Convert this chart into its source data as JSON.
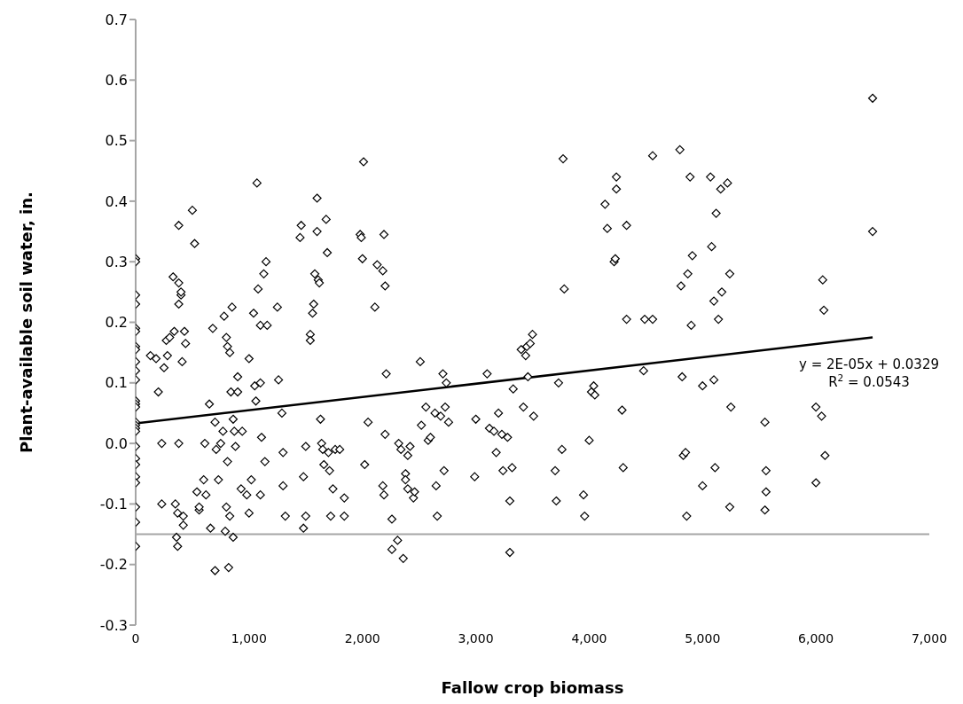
{
  "chart_data": {
    "type": "scatter",
    "xlabel": "Fallow crop biomass",
    "ylabel": "Plant-available soil water, in.",
    "xlim": [
      0,
      7000
    ],
    "xticks": [
      {
        "value": 0,
        "label": "0"
      },
      {
        "value": 1000,
        "label": "1,000"
      },
      {
        "value": 2000,
        "label": "2,000"
      },
      {
        "value": 3000,
        "label": "3,000"
      },
      {
        "value": 4000,
        "label": "4,000"
      },
      {
        "value": 5000,
        "label": "5,000"
      },
      {
        "value": 6000,
        "label": "6,000"
      },
      {
        "value": 7000,
        "label": "7,000"
      }
    ],
    "ylim": [
      -0.3,
      0.7
    ],
    "yticks": [
      {
        "value": -0.3,
        "label": "-0.3"
      },
      {
        "value": -0.2,
        "label": "-0.2"
      },
      {
        "value": -0.1,
        "label": "-0.1"
      },
      {
        "value": 0,
        "label": "0.0"
      },
      {
        "value": 0.1,
        "label": "0.1"
      },
      {
        "value": 0.2,
        "label": "0.2"
      },
      {
        "value": 0.3,
        "label": "0.3"
      },
      {
        "value": 0.4,
        "label": "0.4"
      },
      {
        "value": 0.5,
        "label": "0.5"
      },
      {
        "value": 0.6,
        "label": "0.6"
      },
      {
        "value": 0.7,
        "label": "0.7"
      }
    ],
    "ref_lines": [
      {
        "axis": "y",
        "value": -0.15,
        "color": "#a6a6a6"
      }
    ],
    "annotations": [
      "y = 2E-05x + 0.0329",
      "R$^{2}$ = 0.0543"
    ],
    "series": [
      {
        "color": "#000000",
        "marker": "diamond",
        "x": [
          0,
          0,
          0,
          0,
          0,
          0,
          0,
          0,
          0,
          0,
          0,
          0,
          0,
          0,
          0,
          0,
          0,
          0,
          0,
          0,
          0,
          0,
          0,
          0,
          0,
          0,
          130,
          180,
          200,
          230,
          230,
          250,
          270,
          280,
          300,
          330,
          340,
          350,
          360,
          370,
          370,
          380,
          380,
          380,
          380,
          400,
          400,
          410,
          420,
          420,
          430,
          440,
          500,
          520,
          540,
          560,
          560,
          600,
          610,
          620,
          650,
          660,
          680,
          700,
          700,
          710,
          730,
          750,
          770,
          780,
          790,
          800,
          800,
          810,
          810,
          820,
          830,
          830,
          840,
          850,
          860,
          860,
          870,
          880,
          900,
          900,
          930,
          940,
          980,
          1000,
          1000,
          1020,
          1040,
          1050,
          1060,
          1070,
          1080,
          1100,
          1100,
          1100,
          1110,
          1130,
          1150,
          1160,
          1140,
          1250,
          1260,
          1290,
          1300,
          1320,
          1300,
          1450,
          1460,
          1480,
          1500,
          1500,
          1480,
          1540,
          1540,
          1560,
          1570,
          1580,
          1600,
          1600,
          1610,
          1620,
          1630,
          1640,
          1650,
          1660,
          1680,
          1690,
          1700,
          1710,
          1720,
          1740,
          1760,
          1800,
          1840,
          1840,
          1980,
          1990,
          2000,
          2010,
          2020,
          2050,
          2110,
          2130,
          2180,
          2190,
          2200,
          2210,
          2200,
          2180,
          2190,
          2260,
          2260,
          2310,
          2320,
          2340,
          2360,
          2380,
          2380,
          2400,
          2400,
          2420,
          2450,
          2460,
          2510,
          2520,
          2560,
          2580,
          2600,
          2640,
          2650,
          2660,
          2690,
          2710,
          2720,
          2730,
          2740,
          2760,
          2990,
          3000,
          3100,
          3120,
          3160,
          3180,
          3200,
          3230,
          3240,
          3280,
          3300,
          3300,
          3320,
          3330,
          3400,
          3420,
          3440,
          3450,
          3460,
          3480,
          3500,
          3510,
          3700,
          3710,
          3730,
          3760,
          3770,
          3780,
          3950,
          3960,
          4000,
          4020,
          4040,
          4050,
          4140,
          4160,
          4220,
          4230,
          4240,
          4240,
          4290,
          4300,
          4330,
          4330,
          4480,
          4490,
          4560,
          4560,
          4800,
          4810,
          4820,
          4830,
          4850,
          4860,
          4870,
          4890,
          4900,
          4910,
          5000,
          5000,
          5070,
          5080,
          5100,
          5100,
          5110,
          5120,
          5140,
          5160,
          5170,
          5220,
          5240,
          5250,
          5240,
          5550,
          5560,
          5560,
          5550,
          6000,
          6000,
          6050,
          6060,
          6070,
          6080,
          6500,
          6500
        ],
        "values": [
          0.305,
          0.3,
          0.245,
          0.23,
          0.19,
          0.185,
          0.16,
          0.155,
          0.135,
          0.12,
          0.105,
          0.07,
          0.065,
          0.06,
          0.035,
          0.03,
          0.025,
          0.02,
          -0.005,
          -0.025,
          -0.035,
          -0.055,
          -0.065,
          -0.105,
          -0.13,
          -0.17,
          0.145,
          0.14,
          0.085,
          0.0,
          -0.1,
          0.125,
          0.17,
          0.145,
          0.175,
          0.275,
          0.185,
          -0.1,
          -0.155,
          -0.17,
          -0.115,
          0.0,
          0.36,
          0.265,
          0.23,
          0.245,
          0.25,
          0.135,
          -0.12,
          -0.135,
          0.185,
          0.165,
          0.385,
          0.33,
          -0.08,
          -0.11,
          -0.105,
          -0.06,
          0.0,
          -0.085,
          0.065,
          -0.14,
          0.19,
          -0.21,
          0.035,
          -0.01,
          -0.06,
          0.0,
          0.02,
          0.21,
          -0.145,
          0.175,
          -0.105,
          0.16,
          -0.03,
          -0.205,
          0.15,
          -0.12,
          0.085,
          0.225,
          0.04,
          -0.155,
          0.02,
          -0.005,
          0.11,
          0.085,
          -0.075,
          0.02,
          -0.085,
          0.14,
          -0.115,
          -0.06,
          0.215,
          0.095,
          0.07,
          0.43,
          0.255,
          0.195,
          0.1,
          -0.085,
          0.01,
          0.28,
          0.3,
          0.195,
          -0.03,
          0.225,
          0.105,
          0.05,
          -0.015,
          -0.12,
          -0.07,
          0.34,
          0.36,
          -0.055,
          -0.005,
          -0.12,
          -0.14,
          0.18,
          0.17,
          0.215,
          0.23,
          0.28,
          0.405,
          0.35,
          0.27,
          0.265,
          0.04,
          0.0,
          -0.01,
          -0.035,
          0.37,
          0.315,
          -0.015,
          -0.045,
          -0.12,
          -0.075,
          -0.01,
          -0.01,
          -0.09,
          -0.12,
          0.345,
          0.34,
          0.305,
          0.465,
          -0.035,
          0.035,
          0.225,
          0.295,
          0.285,
          0.345,
          0.26,
          0.115,
          0.015,
          -0.07,
          -0.085,
          -0.125,
          -0.175,
          -0.16,
          0.0,
          -0.01,
          -0.19,
          -0.05,
          -0.06,
          -0.075,
          -0.02,
          -0.005,
          -0.09,
          -0.08,
          0.135,
          0.03,
          0.06,
          0.005,
          0.01,
          0.05,
          -0.07,
          -0.12,
          0.045,
          0.115,
          -0.045,
          0.06,
          0.1,
          0.035,
          -0.055,
          0.04,
          0.115,
          0.025,
          0.02,
          -0.015,
          0.05,
          0.015,
          -0.045,
          0.01,
          -0.095,
          -0.18,
          -0.04,
          0.09,
          0.155,
          0.06,
          0.145,
          0.16,
          0.11,
          0.165,
          0.18,
          0.045,
          -0.045,
          -0.095,
          0.1,
          -0.01,
          0.47,
          0.255,
          -0.085,
          -0.12,
          0.005,
          0.085,
          0.095,
          0.08,
          0.395,
          0.355,
          0.3,
          0.305,
          0.42,
          0.44,
          0.055,
          -0.04,
          0.36,
          0.205,
          0.12,
          0.205,
          0.475,
          0.205,
          0.485,
          0.26,
          0.11,
          -0.02,
          -0.015,
          -0.12,
          0.28,
          0.44,
          0.195,
          0.31,
          0.095,
          -0.07,
          0.44,
          0.325,
          0.235,
          0.105,
          -0.04,
          0.38,
          0.205,
          0.42,
          0.25,
          0.43,
          0.28,
          0.06,
          -0.105,
          0.035,
          -0.045,
          -0.08,
          -0.11,
          0.06,
          -0.065,
          0.045,
          0.27,
          0.22,
          -0.02,
          0.57,
          0.35
        ]
      },
      {
        "type": "line",
        "color": "#000000",
        "x": [
          0,
          6500
        ],
        "values": [
          0.033,
          0.175
        ]
      }
    ]
  }
}
